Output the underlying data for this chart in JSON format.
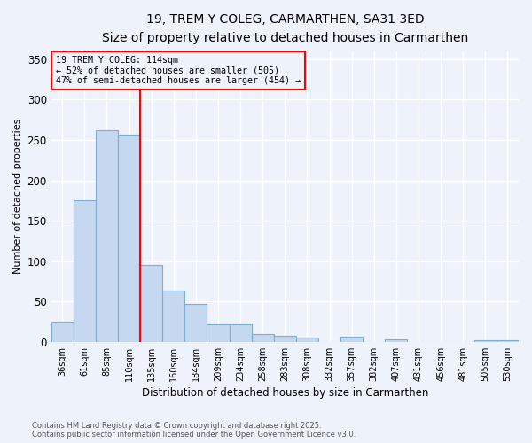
{
  "title_line1": "19, TREM Y COLEG, CARMARTHEN, SA31 3ED",
  "title_line2": "Size of property relative to detached houses in Carmarthen",
  "xlabel": "Distribution of detached houses by size in Carmarthen",
  "ylabel": "Number of detached properties",
  "footnote_line1": "Contains HM Land Registry data © Crown copyright and database right 2025.",
  "footnote_line2": "Contains public sector information licensed under the Open Government Licence v3.0.",
  "bar_labels": [
    "36sqm",
    "61sqm",
    "85sqm",
    "110sqm",
    "135sqm",
    "160sqm",
    "184sqm",
    "209sqm",
    "234sqm",
    "258sqm",
    "283sqm",
    "308sqm",
    "332sqm",
    "357sqm",
    "382sqm",
    "407sqm",
    "431sqm",
    "456sqm",
    "481sqm",
    "505sqm",
    "530sqm"
  ],
  "bar_values": [
    25,
    175,
    262,
    257,
    95,
    63,
    47,
    22,
    22,
    10,
    8,
    5,
    0,
    6,
    0,
    3,
    0,
    0,
    0,
    2,
    2
  ],
  "bar_color": "#c5d8f0",
  "bar_edge_color": "#7aaed4",
  "background_color": "#eef2fb",
  "grid_color": "#ffffff",
  "vline_color": "red",
  "vline_x_index": 3,
  "annotation_text": "19 TREM Y COLEG: 114sqm\n← 52% of detached houses are smaller (505)\n47% of semi-detached houses are larger (454) →",
  "annotation_box_color": "red",
  "ylim": [
    0,
    360
  ],
  "yticks": [
    0,
    50,
    100,
    150,
    200,
    250,
    300,
    350
  ]
}
